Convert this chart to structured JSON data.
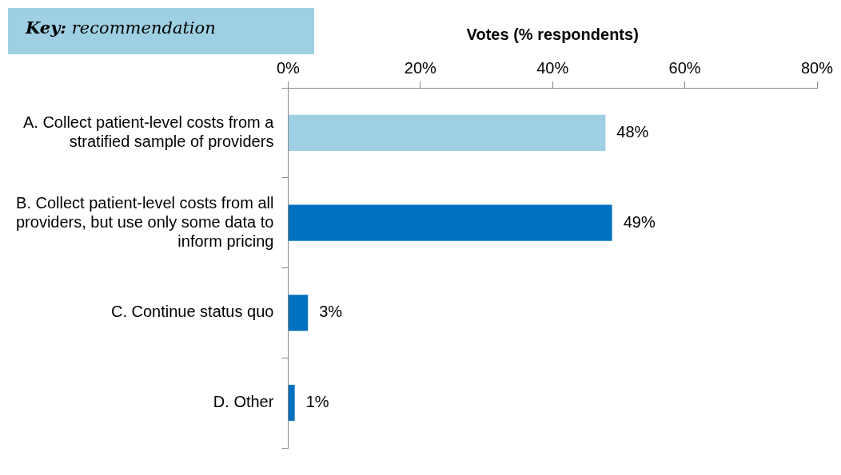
{
  "chart_data": {
    "type": "bar",
    "orientation": "horizontal",
    "xlabel": "Votes (% respondents)",
    "categories": [
      "A. Collect patient-level costs from a stratified sample of providers",
      "B. Collect patient-level costs from all providers, but use only some data to inform pricing",
      "C. Continue status quo",
      "D. Other"
    ],
    "values": [
      48,
      49,
      3,
      1
    ],
    "colors": [
      "#9ecfe2",
      "#0070c0",
      "#0070c0",
      "#0070c0"
    ],
    "value_labels": [
      "48%",
      "49%",
      "3%",
      "1%"
    ],
    "xlim": [
      0,
      80
    ],
    "xticks": [
      {
        "value": 0,
        "label": "0%"
      },
      {
        "value": 20,
        "label": "20%"
      },
      {
        "value": 40,
        "label": "40%"
      },
      {
        "value": 60,
        "label": "60%"
      },
      {
        "value": 80,
        "label": "80%"
      }
    ],
    "annotations": [
      "Key: recommendation"
    ],
    "grid": false,
    "legend": false
  }
}
